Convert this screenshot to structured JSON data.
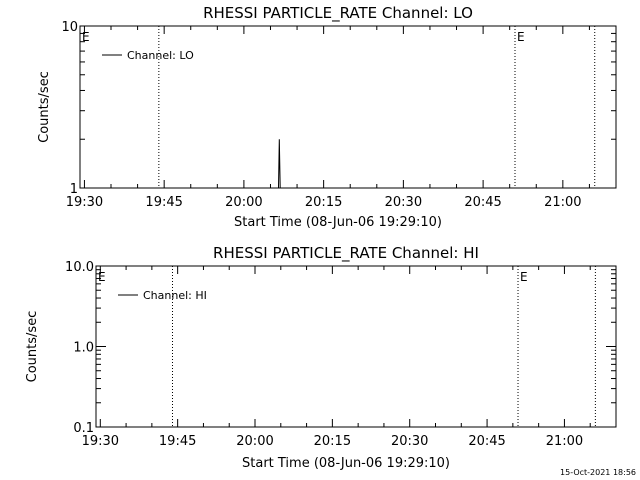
{
  "chart_data": [
    {
      "type": "line",
      "title": "RHESSI PARTICLE_RATE Channel: LO",
      "xlabel": "Start Time (08-Jun-06 19:29:10)",
      "ylabel": "Counts/sec",
      "y_scale": "log",
      "ylim": [
        1,
        10
      ],
      "y_ticks": [
        {
          "value": 1,
          "label": "1"
        },
        {
          "value": 10,
          "label": "10"
        }
      ],
      "xlim": [
        "19:29:10",
        "21:10:00"
      ],
      "x_ticks": [
        "19:30",
        "19:45",
        "20:00",
        "20:15",
        "20:30",
        "20:45",
        "21:00"
      ],
      "legend": {
        "placement": "top-left",
        "entries": [
          "Channel: LO"
        ]
      },
      "series": [
        {
          "name": "Channel: LO",
          "points": [
            {
              "x": "20:06:30",
              "y": 1
            },
            {
              "x": "20:06:40",
              "y": 2
            },
            {
              "x": "20:06:50",
              "y": 1
            }
          ]
        }
      ],
      "event_lines": [
        {
          "x": "19:44:00",
          "label": ""
        },
        {
          "x": "20:51:00",
          "label": "E"
        },
        {
          "x": "21:06:00",
          "label": ""
        }
      ],
      "corner_marker": "E"
    },
    {
      "type": "line",
      "title": "RHESSI PARTICLE_RATE Channel: HI",
      "xlabel": "Start Time (08-Jun-06 19:29:10)",
      "ylabel": "Counts/sec",
      "y_scale": "log",
      "ylim": [
        0.1,
        10
      ],
      "y_ticks": [
        {
          "value": 0.1,
          "label": "0.1"
        },
        {
          "value": 1,
          "label": "1.0"
        },
        {
          "value": 10,
          "label": "10.0"
        }
      ],
      "xlim": [
        "19:29:10",
        "21:10:00"
      ],
      "x_ticks": [
        "19:30",
        "19:45",
        "20:00",
        "20:15",
        "20:30",
        "20:45",
        "21:00"
      ],
      "legend": {
        "placement": "top-left",
        "entries": [
          "Channel: HI"
        ]
      },
      "series": [
        {
          "name": "Channel: HI",
          "points": []
        }
      ],
      "event_lines": [
        {
          "x": "19:44:00",
          "label": ""
        },
        {
          "x": "20:51:00",
          "label": "E"
        },
        {
          "x": "21:06:00",
          "label": ""
        }
      ],
      "corner_marker": "E"
    }
  ],
  "footer": {
    "timestamp": "15-Oct-2021 18:56"
  }
}
